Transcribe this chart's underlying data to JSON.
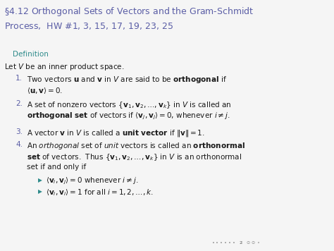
{
  "title_color": "#5b5ea6",
  "definition_color": "#2e8b8b",
  "bg_color": "#f5f5f5",
  "text_color": "#1a1a1a",
  "title_fontsize": 9.0,
  "body_fontsize": 7.5,
  "num_color": "#5b5ea6",
  "bullet_color": "#2e8b8b"
}
